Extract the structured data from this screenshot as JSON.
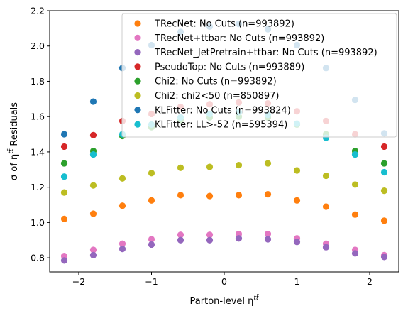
{
  "chart_data": {
    "type": "scatter",
    "title": "",
    "xlabel": "Parton-level η",
    "xlabel_sup": "tt̄",
    "ylabel": "σ of η",
    "ylabel_sup": "tt̄",
    "ylabel_suffix": " Residuals",
    "xlim": [
      -2.4,
      2.4
    ],
    "ylim": [
      0.72,
      2.2
    ],
    "xticks": [
      -2,
      -1,
      0,
      1,
      2
    ],
    "xtick_labels": [
      "−2",
      "−1",
      "0",
      "1",
      "2"
    ],
    "yticks": [
      0.8,
      1.0,
      1.2,
      1.4,
      1.6,
      1.8,
      2.0,
      2.2
    ],
    "ytick_labels": [
      "0.8",
      "1.0",
      "1.2",
      "1.4",
      "1.6",
      "1.8",
      "2.0",
      "2.2"
    ],
    "grid": false,
    "legend_position": "upper-right",
    "x": [
      -2.2,
      -1.8,
      -1.4,
      -1.0,
      -0.6,
      -0.2,
      0.2,
      0.6,
      1.0,
      1.4,
      1.8,
      2.2
    ],
    "series": [
      {
        "name": "TRecNet: No Cuts (n=993892)",
        "color": "#ff7f0e",
        "values": [
          1.02,
          1.05,
          1.095,
          1.125,
          1.155,
          1.15,
          1.155,
          1.16,
          1.125,
          1.09,
          1.045,
          1.01
        ]
      },
      {
        "name": "TRecNet+ttbar: No Cuts (n=993892)",
        "color": "#e377c2",
        "values": [
          0.81,
          0.845,
          0.88,
          0.905,
          0.93,
          0.93,
          0.935,
          0.935,
          0.91,
          0.88,
          0.845,
          0.815
        ]
      },
      {
        "name": "TRecNet_JetPretrain+ttbar: No Cuts (n=993892)",
        "color": "#9467bd",
        "values": [
          0.785,
          0.815,
          0.85,
          0.875,
          0.9,
          0.9,
          0.91,
          0.905,
          0.89,
          0.86,
          0.825,
          0.805
        ]
      },
      {
        "name": "PseudoTop: No Cuts (n=993889)",
        "color": "#d62728",
        "values": [
          1.43,
          1.495,
          1.575,
          1.615,
          1.655,
          1.67,
          1.68,
          1.675,
          1.63,
          1.575,
          1.5,
          1.43
        ]
      },
      {
        "name": "Chi2: No Cuts (n=993892)",
        "color": "#2ca02c",
        "values": [
          1.335,
          1.405,
          1.49,
          1.54,
          1.58,
          1.595,
          1.6,
          1.595,
          1.555,
          1.5,
          1.405,
          1.335
        ]
      },
      {
        "name": "Chi2: chi2<50 (n=850897)",
        "color": "#bcbd22",
        "values": [
          1.17,
          1.21,
          1.25,
          1.28,
          1.31,
          1.315,
          1.325,
          1.335,
          1.295,
          1.265,
          1.215,
          1.18
        ]
      },
      {
        "name": "KLFitter: No Cuts (n=993824)",
        "color": "#1f77b4",
        "values": [
          1.5,
          1.685,
          1.875,
          2.005,
          2.08,
          2.11,
          2.125,
          2.095,
          2.005,
          1.875,
          1.695,
          1.505
        ]
      },
      {
        "name": "KLFitter: LL>-52 (n=595394)",
        "color": "#17becf",
        "values": [
          1.26,
          1.385,
          1.5,
          1.555,
          1.595,
          1.615,
          1.625,
          1.61,
          1.56,
          1.48,
          1.385,
          1.285
        ]
      }
    ]
  }
}
